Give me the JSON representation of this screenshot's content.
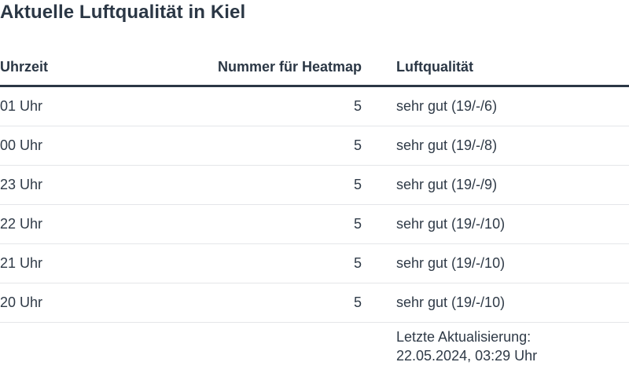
{
  "title": "Aktuelle Luftqualität in Kiel",
  "columns": [
    "Uhrzeit",
    "Nummer für Heatmap",
    "Luftqualität"
  ],
  "rows": [
    {
      "time": "01 Uhr",
      "heat": "5",
      "quality": "sehr gut (19/-/6)"
    },
    {
      "time": "00 Uhr",
      "heat": "5",
      "quality": "sehr gut (19/-/8)"
    },
    {
      "time": "23 Uhr",
      "heat": "5",
      "quality": "sehr gut (19/-/9)"
    },
    {
      "time": "22 Uhr",
      "heat": "5",
      "quality": "sehr gut (19/-/10)"
    },
    {
      "time": "21 Uhr",
      "heat": "5",
      "quality": "sehr gut (19/-/10)"
    },
    {
      "time": "20 Uhr",
      "heat": "5",
      "quality": "sehr gut (19/-/10)"
    }
  ],
  "footer": {
    "label": "Letzte Aktualisierung:",
    "timestamp": "22.05.2024, 03:29 Uhr"
  }
}
